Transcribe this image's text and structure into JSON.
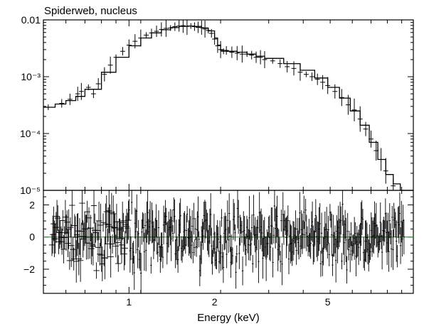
{
  "title": "Spiderweb, nucleus",
  "colors": {
    "data": "#000000",
    "model": "#000000",
    "zero_line": "#00c000",
    "frame": "#000000"
  },
  "chart_data": [
    {
      "type": "scatter",
      "role": "spectrum",
      "title": "Spiderweb, nucleus",
      "xscale": "log",
      "yscale": "log",
      "xlim": [
        0.5,
        10
      ],
      "ylim": [
        1e-05,
        0.01
      ],
      "ytick_labels": [
        "0.01",
        "10⁻³",
        "10⁻⁴",
        "10⁻⁵"
      ],
      "ytick_values": [
        0.01,
        0.001,
        0.0001,
        1e-05
      ],
      "series": [
        {
          "kind": "model-step",
          "x": [
            0.5,
            0.55,
            0.6,
            0.65,
            0.7,
            0.8,
            0.9,
            1.0,
            1.1,
            1.2,
            1.3,
            1.4,
            1.5,
            1.6,
            1.7,
            1.8,
            1.9,
            2.0,
            2.05,
            2.1,
            2.2,
            2.4,
            2.6,
            2.8,
            3.0,
            3.5,
            4.0,
            4.5,
            5.0,
            5.5,
            6.0,
            6.5,
            7.0,
            7.5,
            8.0,
            8.5,
            9.0,
            10.0
          ],
          "y": [
            0.00029,
            0.00033,
            0.00038,
            0.00045,
            0.0006,
            0.0012,
            0.0022,
            0.0035,
            0.0048,
            0.0059,
            0.0067,
            0.0073,
            0.0077,
            0.0078,
            0.0077,
            0.0072,
            0.0064,
            0.0048,
            0.0036,
            0.0029,
            0.0028,
            0.0027,
            0.0025,
            0.0023,
            0.0021,
            0.0017,
            0.0013,
            0.00095,
            0.00065,
            0.00042,
            0.00025,
            0.00014,
            7e-05,
            3.5e-05,
            1.9e-05,
            1.3e-05,
            1e-05,
            1e-05
          ]
        },
        {
          "kind": "data",
          "x": [
            0.52,
            0.58,
            0.62,
            0.66,
            0.68,
            0.72,
            0.75,
            0.78,
            0.82,
            0.86,
            0.9,
            0.95,
            1.0,
            1.05,
            1.1,
            1.15,
            1.2,
            1.25,
            1.3,
            1.35,
            1.4,
            1.45,
            1.5,
            1.55,
            1.6,
            1.65,
            1.7,
            1.75,
            1.8,
            1.85,
            1.9,
            1.95,
            2.0,
            2.05,
            2.1,
            2.15,
            2.2,
            2.3,
            2.4,
            2.5,
            2.6,
            2.7,
            2.8,
            2.9,
            3.0,
            3.2,
            3.4,
            3.6,
            3.8,
            4.0,
            4.2,
            4.4,
            4.6,
            4.8,
            5.0,
            5.3,
            5.6,
            5.9,
            6.2,
            6.5,
            6.8,
            7.1,
            7.4,
            7.7,
            8.0,
            8.5
          ],
          "y": [
            0.00029,
            0.00034,
            0.0004,
            0.0005,
            0.00055,
            0.00065,
            0.0005,
            0.00075,
            0.0011,
            0.0016,
            0.0022,
            0.0028,
            0.0036,
            0.0042,
            0.0048,
            0.0054,
            0.0059,
            0.0063,
            0.0068,
            0.0071,
            0.0072,
            0.0076,
            0.0078,
            0.0079,
            0.0077,
            0.0078,
            0.0076,
            0.0074,
            0.0073,
            0.0069,
            0.0065,
            0.0058,
            0.0046,
            0.0035,
            0.003,
            0.0028,
            0.0029,
            0.0027,
            0.0026,
            0.0025,
            0.0025,
            0.0024,
            0.0022,
            0.0022,
            0.002,
            0.0019,
            0.0017,
            0.0015,
            0.0014,
            0.0012,
            0.0011,
            0.001,
            0.0009,
            0.0008,
            0.0007,
            0.00055,
            0.00043,
            0.00032,
            0.00026,
            0.00018,
            0.00012,
            8e-05,
            5e-05,
            3.5e-05,
            2.2e-05,
            1.2e-05
          ]
        }
      ]
    },
    {
      "type": "scatter",
      "role": "residuals",
      "xlabel": "Energy (keV)",
      "xscale": "log",
      "xlim": [
        0.5,
        10
      ],
      "xtick_labels": [
        "1",
        "2",
        "5"
      ],
      "xtick_values": [
        1,
        2,
        5
      ],
      "ylim": [
        -3.5,
        2.9
      ],
      "ytick_labels": [
        "2",
        "0",
        "−2"
      ],
      "ytick_values": [
        2,
        0,
        -2
      ],
      "zero_line": 0
    }
  ]
}
